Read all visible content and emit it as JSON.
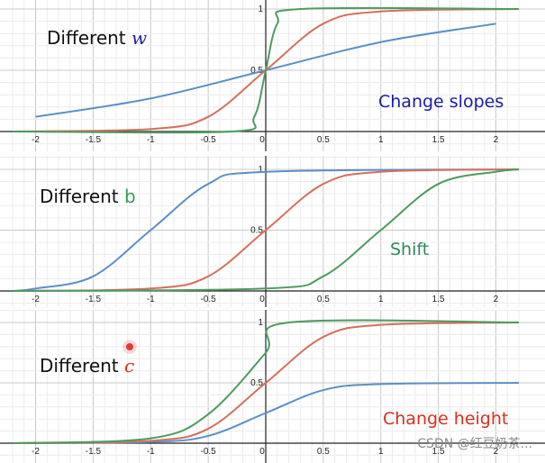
{
  "panels": [
    {
      "title_prefix": "Different ",
      "title_var": "w",
      "annotation": "Change slopes",
      "colors": {
        "var": "#1a1aa8",
        "annotation": "#1a1aa8"
      }
    },
    {
      "title_prefix": "Different ",
      "title_var": "b",
      "annotation": "Shift",
      "colors": {
        "var": "#3a9a5a",
        "annotation": "#2e8b57"
      }
    },
    {
      "title_prefix": "Different ",
      "title_var": "c",
      "annotation": "Change height",
      "colors": {
        "var": "#d7301f",
        "annotation": "#d7301f"
      }
    }
  ],
  "watermark": "CSDN @红豆奶茶...",
  "chart_data": [
    {
      "type": "line",
      "xlim": [
        -2.2,
        2.2
      ],
      "ylim": [
        0,
        1
      ],
      "x_ticks": [
        "-2",
        "-1.5",
        "-1",
        "-0.5",
        "0",
        "0.5",
        "1",
        "1.5",
        "2"
      ],
      "y_tick_labels": [
        "0.5",
        "1"
      ],
      "grid": true,
      "series": [
        {
          "color": "#5b8fc7",
          "y_at_x": [
            [
              -2,
              0.12
            ],
            [
              -1,
              0.27
            ],
            [
              0,
              0.5
            ],
            [
              1,
              0.73
            ],
            [
              2,
              0.88
            ]
          ]
        },
        {
          "color": "#d4705c",
          "y_at_x": [
            [
              -1,
              0.02
            ],
            [
              -0.5,
              0.12
            ],
            [
              0,
              0.5
            ],
            [
              0.5,
              0.88
            ],
            [
              1,
              0.98
            ]
          ]
        },
        {
          "color": "#4d9b5f",
          "y_at_x": [
            [
              -0.3,
              0.0
            ],
            [
              -0.1,
              0.12
            ],
            [
              0,
              0.5
            ],
            [
              0.1,
              0.88
            ],
            [
              0.3,
              1.0
            ]
          ]
        }
      ]
    },
    {
      "type": "line",
      "xlim": [
        -2.2,
        2.2
      ],
      "ylim": [
        0,
        1
      ],
      "x_ticks": [
        "-2",
        "-1.5",
        "-1",
        "-0.5",
        "0",
        "0.5",
        "1",
        "1.5",
        "2"
      ],
      "y_tick_labels": [
        "0.5",
        "1"
      ],
      "grid": true,
      "series": [
        {
          "color": "#5b8fc7",
          "y_at_x": [
            [
              -2,
              0.02
            ],
            [
              -1.5,
              0.12
            ],
            [
              -1,
              0.5
            ],
            [
              -0.5,
              0.88
            ],
            [
              0,
              0.98
            ]
          ]
        },
        {
          "color": "#d4705c",
          "y_at_x": [
            [
              -1,
              0.02
            ],
            [
              -0.5,
              0.12
            ],
            [
              0,
              0.5
            ],
            [
              0.5,
              0.88
            ],
            [
              1,
              0.98
            ]
          ]
        },
        {
          "color": "#4d9b5f",
          "y_at_x": [
            [
              0,
              0.02
            ],
            [
              0.5,
              0.12
            ],
            [
              1,
              0.5
            ],
            [
              1.5,
              0.88
            ],
            [
              2,
              0.98
            ]
          ]
        }
      ]
    },
    {
      "type": "line",
      "xlim": [
        -2.2,
        2.2
      ],
      "ylim": [
        0,
        1
      ],
      "x_ticks": [
        "-2",
        "-1.5",
        "-1",
        "-0.5",
        "0",
        "0.5",
        "1",
        "1.5",
        "2"
      ],
      "y_tick_labels": [
        "0.5",
        "1"
      ],
      "grid": true,
      "series": [
        {
          "color": "#5b8fc7",
          "y_at_x": [
            [
              -1,
              0.01
            ],
            [
              -0.5,
              0.06
            ],
            [
              0,
              0.25
            ],
            [
              0.5,
              0.44
            ],
            [
              1,
              0.49
            ]
          ]
        },
        {
          "color": "#d4705c",
          "y_at_x": [
            [
              -1,
              0.02
            ],
            [
              -0.5,
              0.12
            ],
            [
              0,
              0.5
            ],
            [
              0.5,
              0.88
            ],
            [
              1,
              0.98
            ]
          ]
        },
        {
          "color": "#4d9b5f",
          "y_at_x": [
            [
              -1,
              0.04
            ],
            [
              -0.5,
              0.24
            ],
            [
              0,
              0.75
            ],
            [
              0.2,
              1.0
            ]
          ]
        }
      ]
    }
  ]
}
